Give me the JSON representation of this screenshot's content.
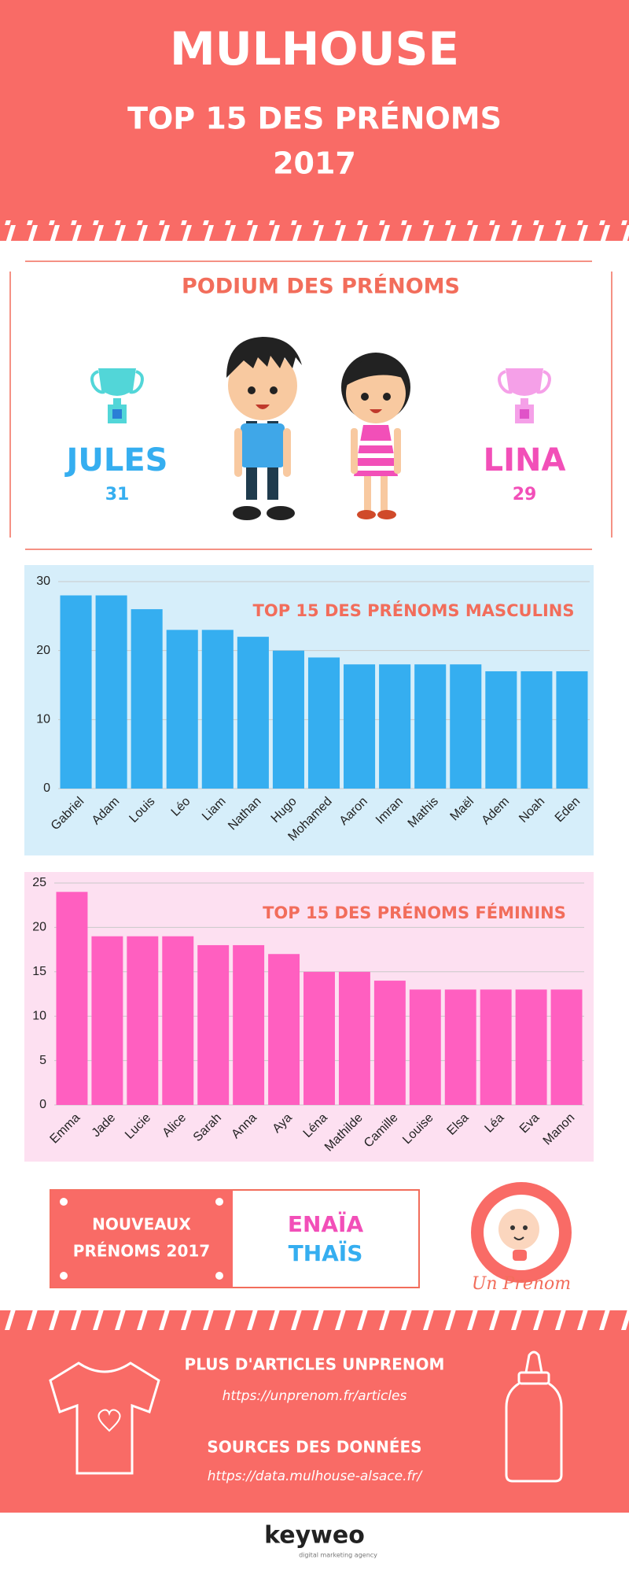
{
  "header": {
    "title": "MULHOUSE",
    "subtitle": "TOP 15 DES PRÉNOMS",
    "year": "2017"
  },
  "podium": {
    "title": "PODIUM DES PRÉNOMS",
    "boy": {
      "name": "JULES",
      "count": 31
    },
    "girl": {
      "name": "LINA",
      "count": 29
    }
  },
  "chart_data": [
    {
      "type": "bar",
      "title": "TOP 15 DES PRÉNOMS MASCULINS",
      "categories": [
        "Gabriel",
        "Adam",
        "Louis",
        "Léo",
        "Liam",
        "Nathan",
        "Hugo",
        "Mohamed",
        "Aaron",
        "Imran",
        "Mathis",
        "Maël",
        "Adem",
        "Noah",
        "Eden"
      ],
      "values": [
        28,
        28,
        26,
        23,
        23,
        22,
        20,
        19,
        18,
        18,
        18,
        18,
        17,
        17,
        17
      ],
      "color": "#35aef0",
      "ylim": [
        0,
        30
      ],
      "yticks": [
        0,
        10,
        20,
        30
      ],
      "grid": true
    },
    {
      "type": "bar",
      "title": "TOP 15 DES PRÉNOMS FÉMININS",
      "categories": [
        "Emma",
        "Jade",
        "Lucie",
        "Alice",
        "Sarah",
        "Anna",
        "Aya",
        "Léna",
        "Mathilde",
        "Camille",
        "Louise",
        "Elsa",
        "Léa",
        "Eva",
        "Manon"
      ],
      "values": [
        24,
        19,
        19,
        19,
        18,
        18,
        17,
        15,
        15,
        14,
        13,
        13,
        13,
        13,
        13
      ],
      "color": "#ff5fc0",
      "ylim": [
        0,
        25
      ],
      "yticks": [
        0,
        5,
        10,
        15,
        20,
        25
      ],
      "grid": true
    }
  ],
  "new_names": {
    "label": [
      "NOUVEAUX",
      "PRÉNOMS 2017"
    ],
    "names": [
      "ENAÏA",
      "THAÏS"
    ]
  },
  "logo": "Un Prenom",
  "footer": {
    "articles_title": "PLUS D'ARTICLES UNPRENOM",
    "articles_url": "https://unprenom.fr/articles",
    "sources_title": "SOURCES DES DONNÉES",
    "sources_url": "https://data.mulhouse-alsace.fr/"
  },
  "brand": {
    "name": "keyweo",
    "tagline": "digital marketing agency"
  }
}
